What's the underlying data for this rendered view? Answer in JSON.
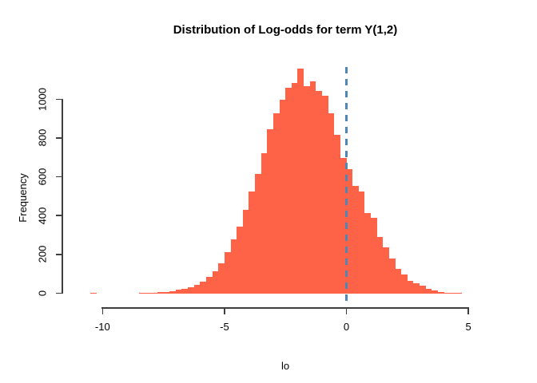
{
  "chart_data": {
    "type": "bar",
    "subtype": "histogram",
    "title": "Distribution of Log-odds for term Y(1,2)",
    "xlabel": "lo",
    "ylabel": "Frequency",
    "x_ticks": [
      -10,
      -5,
      0,
      5
    ],
    "y_ticks": [
      0,
      200,
      400,
      600,
      800,
      1000
    ],
    "xlim": [
      -10,
      5
    ],
    "ylim": [
      0,
      1000
    ],
    "grid": false,
    "legend": null,
    "bin_start": -10.5,
    "bin_width": 0.25,
    "frequencies": [
      5,
      0,
      0,
      0,
      0,
      0,
      0,
      0,
      3,
      6,
      4,
      7,
      10,
      14,
      19,
      25,
      33,
      45,
      60,
      85,
      115,
      155,
      215,
      278,
      345,
      430,
      525,
      615,
      725,
      845,
      930,
      1000,
      1060,
      1085,
      1158,
      1070,
      1095,
      1045,
      1020,
      930,
      820,
      700,
      640,
      554,
      526,
      416,
      389,
      292,
      237,
      182,
      127,
      100,
      65,
      52,
      42,
      24,
      17,
      10,
      6,
      3,
      2
    ],
    "reference_line": {
      "x": 0,
      "style": "dashed",
      "color": "#4F86B8"
    },
    "colors": {
      "bar": "#FF6347",
      "axis": "#3F3F3F",
      "text": "#000000",
      "background": "#FFFFFF"
    }
  }
}
